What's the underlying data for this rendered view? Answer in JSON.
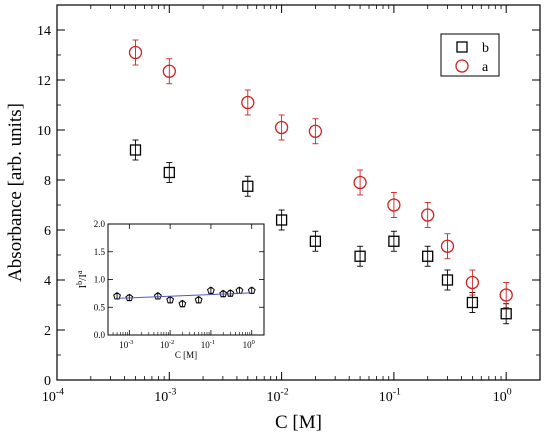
{
  "chart_data": [
    {
      "type": "scatter",
      "title": "",
      "xlabel": "C [M]",
      "ylabel": "Absorbance [arb. units]",
      "x_scale": "log",
      "xlim": [
        0.0001,
        2
      ],
      "ylim": [
        0,
        15
      ],
      "x_ticks": [
        "10",
        "10",
        "10",
        "10",
        "10"
      ],
      "x_tick_exponents": [
        "-4",
        "-3",
        "-2",
        "-1",
        "0"
      ],
      "y_ticks": [
        "0",
        "2",
        "4",
        "6",
        "8",
        "10",
        "12",
        "14"
      ],
      "legend": {
        "placement": "top-right",
        "entries": [
          "b",
          "a"
        ]
      },
      "series": [
        {
          "name": "b",
          "marker": "square",
          "color": "#000000",
          "points": [
            {
              "x": 0.0005,
              "y": 9.2,
              "err": 0.4
            },
            {
              "x": 0.001,
              "y": 8.3,
              "err": 0.4
            },
            {
              "x": 0.005,
              "y": 7.75,
              "err": 0.4
            },
            {
              "x": 0.01,
              "y": 6.4,
              "err": 0.4
            },
            {
              "x": 0.02,
              "y": 5.55,
              "err": 0.4
            },
            {
              "x": 0.05,
              "y": 4.95,
              "err": 0.4
            },
            {
              "x": 0.1,
              "y": 5.55,
              "err": 0.4
            },
            {
              "x": 0.2,
              "y": 4.95,
              "err": 0.4
            },
            {
              "x": 0.3,
              "y": 4.0,
              "err": 0.4
            },
            {
              "x": 0.5,
              "y": 3.1,
              "err": 0.4
            },
            {
              "x": 1.0,
              "y": 2.65,
              "err": 0.4
            }
          ]
        },
        {
          "name": "a",
          "marker": "circle",
          "color": "#cc2222",
          "points": [
            {
              "x": 0.0005,
              "y": 13.1,
              "err": 0.5
            },
            {
              "x": 0.001,
              "y": 12.35,
              "err": 0.5
            },
            {
              "x": 0.005,
              "y": 11.1,
              "err": 0.5
            },
            {
              "x": 0.01,
              "y": 10.1,
              "err": 0.5
            },
            {
              "x": 0.02,
              "y": 9.95,
              "err": 0.5
            },
            {
              "x": 0.05,
              "y": 7.9,
              "err": 0.5
            },
            {
              "x": 0.1,
              "y": 7.0,
              "err": 0.5
            },
            {
              "x": 0.2,
              "y": 6.6,
              "err": 0.5
            },
            {
              "x": 0.3,
              "y": 5.35,
              "err": 0.5
            },
            {
              "x": 0.5,
              "y": 3.9,
              "err": 0.5
            },
            {
              "x": 1.0,
              "y": 3.4,
              "err": 0.5
            }
          ]
        }
      ]
    },
    {
      "type": "scatter",
      "title": "",
      "xlabel": "C [M]",
      "ylabel_base": "I",
      "ylabel_sup1": "b",
      "ylabel_mid": "/I",
      "ylabel_sup2": "a",
      "x_scale": "log",
      "xlim": [
        0.0003,
        2
      ],
      "ylim": [
        0,
        2
      ],
      "x_ticks": [
        "10",
        "10",
        "10",
        "10"
      ],
      "x_tick_exponents": [
        "-3",
        "-2",
        "-1",
        "0"
      ],
      "y_ticks": [
        "0.0",
        "0.5",
        "1.0",
        "1.5",
        "2.0"
      ],
      "series": [
        {
          "marker": "pentagon",
          "color": "#000000",
          "points": [
            {
              "x": 0.0005,
              "y": 0.7,
              "err": 0.05
            },
            {
              "x": 0.001,
              "y": 0.67,
              "err": 0.05
            },
            {
              "x": 0.005,
              "y": 0.7,
              "err": 0.05
            },
            {
              "x": 0.01,
              "y": 0.63,
              "err": 0.05
            },
            {
              "x": 0.02,
              "y": 0.56,
              "err": 0.05
            },
            {
              "x": 0.05,
              "y": 0.63,
              "err": 0.05
            },
            {
              "x": 0.1,
              "y": 0.8,
              "err": 0.05
            },
            {
              "x": 0.2,
              "y": 0.74,
              "err": 0.05
            },
            {
              "x": 0.3,
              "y": 0.75,
              "err": 0.05
            },
            {
              "x": 0.5,
              "y": 0.8,
              "err": 0.05
            },
            {
              "x": 1.0,
              "y": 0.8,
              "err": 0.05
            }
          ]
        },
        {
          "type": "line",
          "color": "#5555bb",
          "points": [
            {
              "x": 0.0005,
              "y": 0.66
            },
            {
              "x": 1.0,
              "y": 0.76
            }
          ]
        }
      ]
    }
  ]
}
